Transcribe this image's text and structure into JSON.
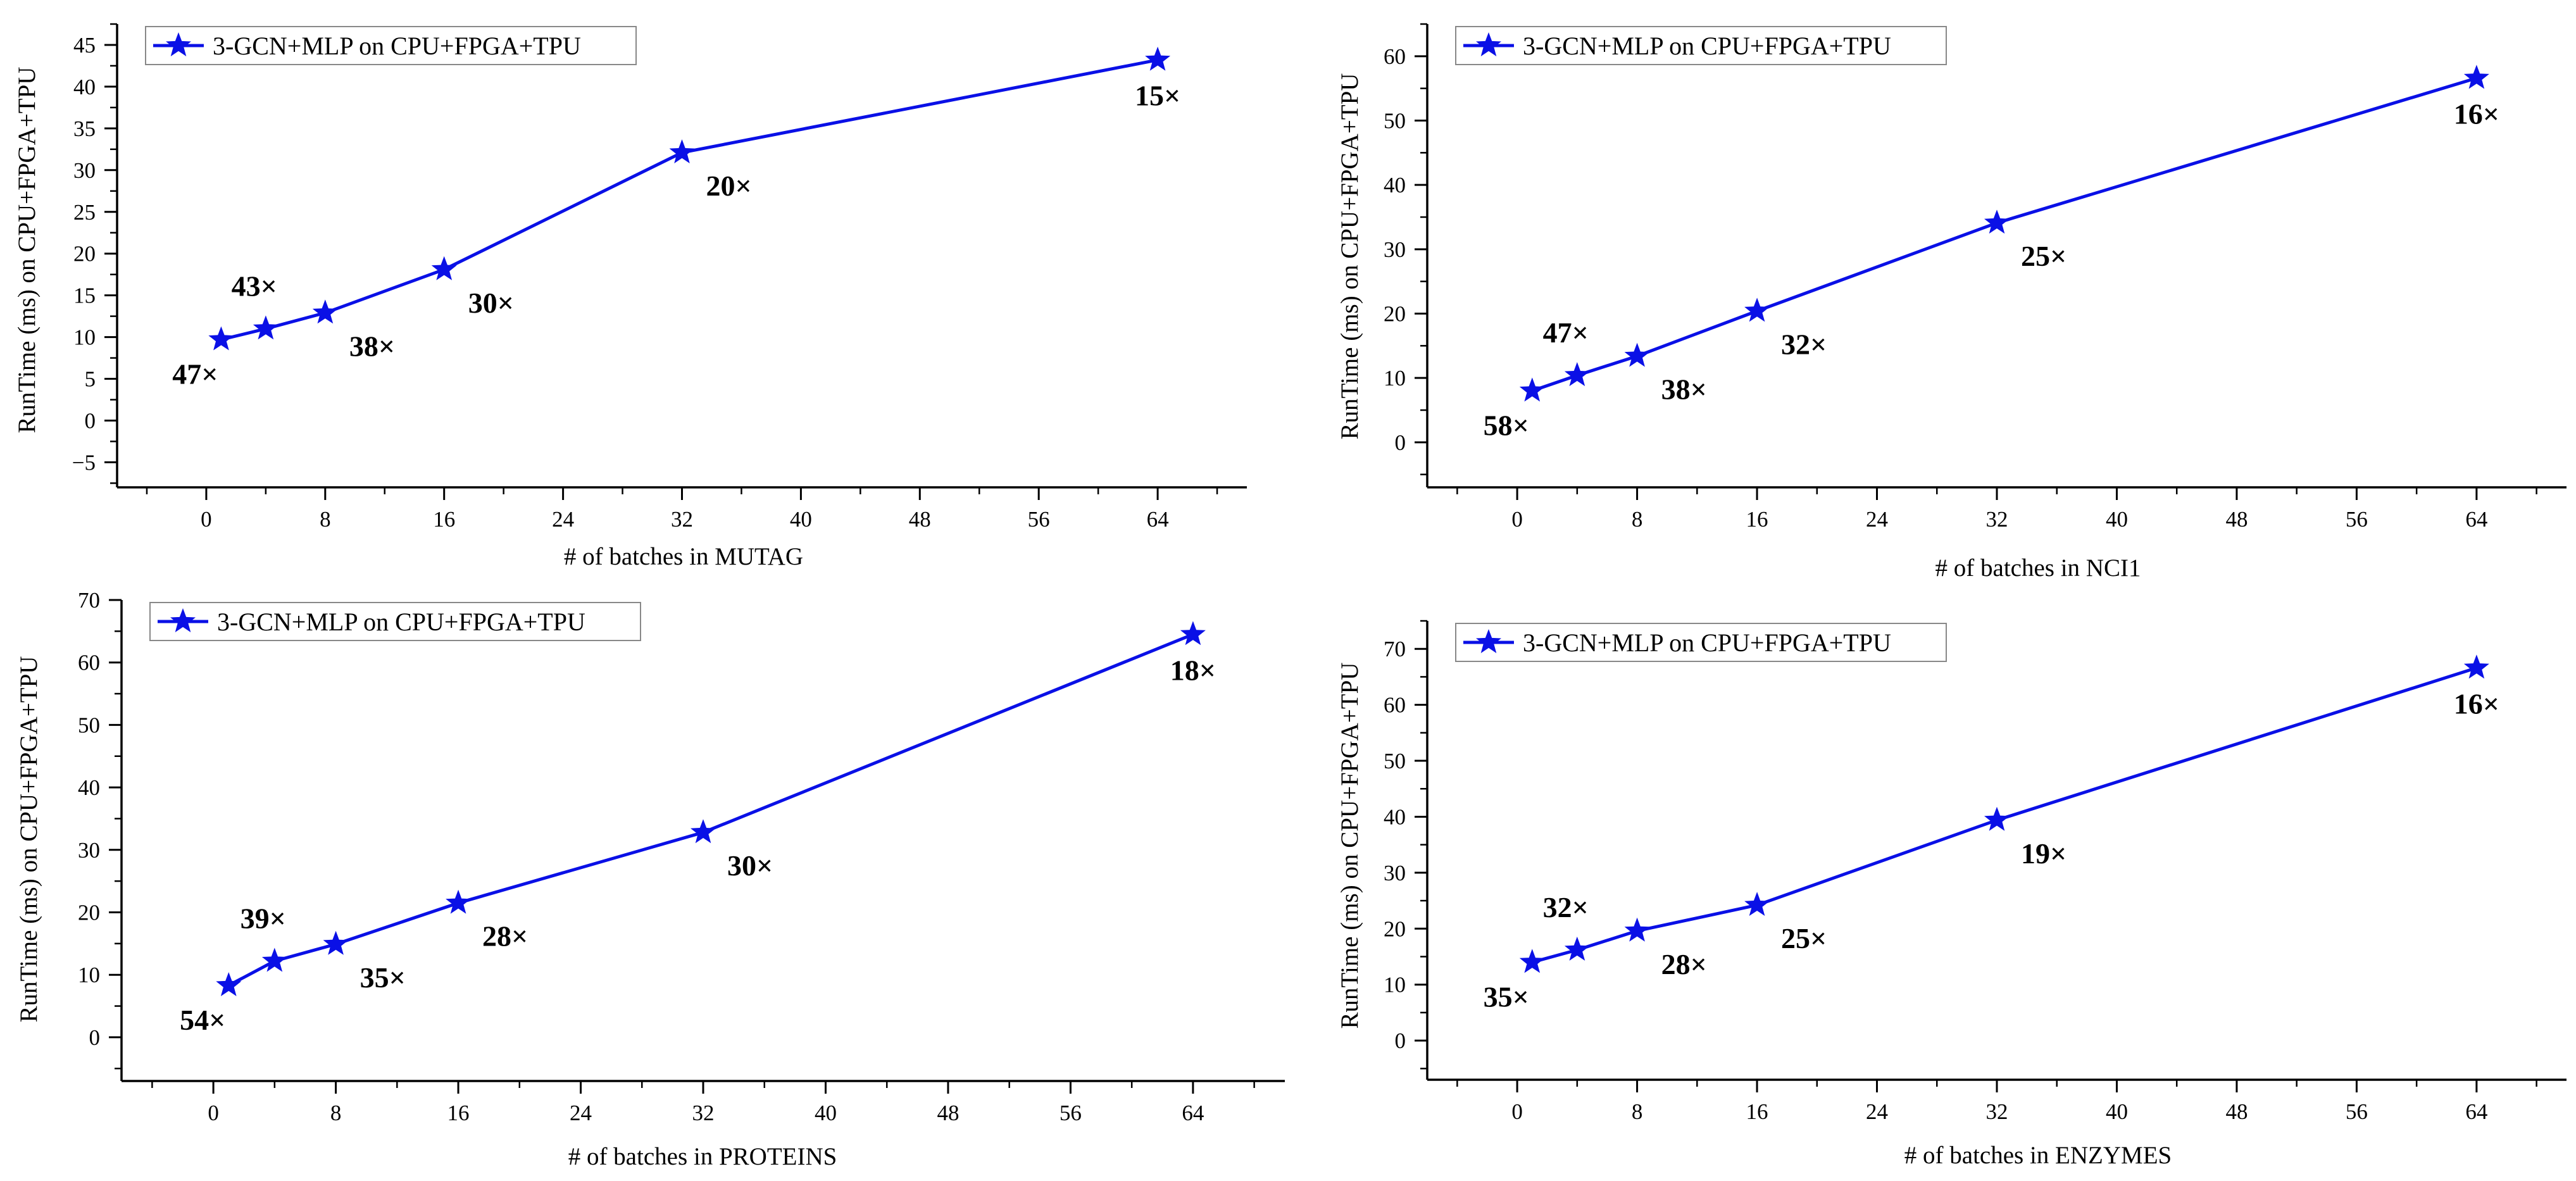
{
  "colors": {
    "series": "#0a10e6",
    "axis": "#000000",
    "legend_border": "#888888"
  },
  "chart_data": [
    {
      "type": "line",
      "title": "",
      "xlabel": "# of batches in MUTAG",
      "ylabel": "RunTime (ms) on CPU+FPGA+TPU",
      "xlim": [
        -6,
        70
      ],
      "ylim": [
        -8,
        47.5
      ],
      "xticks": [
        0,
        8,
        16,
        24,
        32,
        40,
        48,
        56,
        64
      ],
      "yticks": [
        -5,
        0,
        5,
        10,
        15,
        20,
        25,
        30,
        35,
        40,
        45
      ],
      "legend_position": "top-left",
      "series": [
        {
          "name": "3-GCN+MLP on CPU+FPGA+TPU",
          "marker": "star",
          "x": [
            1,
            4,
            8,
            16,
            32,
            64
          ],
          "y": [
            9.7,
            11.0,
            12.9,
            18.1,
            32.1,
            43.2
          ]
        }
      ],
      "annotations": [
        {
          "text": "47×",
          "x": 1,
          "y": 9.7,
          "place": "below-left"
        },
        {
          "text": "43×",
          "x": 4,
          "y": 11.0,
          "place": "above"
        },
        {
          "text": "38×",
          "x": 8,
          "y": 12.9,
          "place": "below-right"
        },
        {
          "text": "30×",
          "x": 16,
          "y": 18.1,
          "place": "below-right"
        },
        {
          "text": "20×",
          "x": 32,
          "y": 32.1,
          "place": "below-right"
        },
        {
          "text": "15×",
          "x": 64,
          "y": 43.2,
          "place": "below"
        }
      ]
    },
    {
      "type": "line",
      "title": "",
      "xlabel": "# of batches in NCI1",
      "ylabel": "RunTime (ms) on CPU+FPGA+TPU",
      "xlim": [
        -6,
        70
      ],
      "ylim": [
        -7,
        65
      ],
      "xticks": [
        0,
        8,
        16,
        24,
        32,
        40,
        48,
        56,
        64
      ],
      "yticks": [
        0,
        10,
        20,
        30,
        40,
        50,
        60
      ],
      "legend_position": "top-left",
      "series": [
        {
          "name": "3-GCN+MLP on CPU+FPGA+TPU",
          "marker": "star",
          "x": [
            1,
            4,
            8,
            16,
            32,
            64
          ],
          "y": [
            8.0,
            10.4,
            13.4,
            20.4,
            34.1,
            56.6
          ]
        }
      ],
      "annotations": [
        {
          "text": "58×",
          "x": 1,
          "y": 8.0,
          "place": "below-left"
        },
        {
          "text": "47×",
          "x": 4,
          "y": 10.4,
          "place": "above"
        },
        {
          "text": "38×",
          "x": 8,
          "y": 13.4,
          "place": "below-right"
        },
        {
          "text": "32×",
          "x": 16,
          "y": 20.4,
          "place": "below-right"
        },
        {
          "text": "25×",
          "x": 32,
          "y": 34.1,
          "place": "below-right"
        },
        {
          "text": "16×",
          "x": 64,
          "y": 56.6,
          "place": "below"
        }
      ]
    },
    {
      "type": "line",
      "title": "",
      "xlabel": "# of batches in PROTEINS",
      "ylabel": "RunTime (ms) on CPU+FPGA+TPU",
      "xlim": [
        -6,
        70
      ],
      "ylim": [
        -7,
        70
      ],
      "xticks": [
        0,
        8,
        16,
        24,
        32,
        40,
        48,
        56,
        64
      ],
      "yticks": [
        0,
        10,
        20,
        30,
        40,
        50,
        60,
        70
      ],
      "legend_position": "top-left",
      "series": [
        {
          "name": "3-GCN+MLP on CPU+FPGA+TPU",
          "marker": "star",
          "x": [
            1,
            4,
            8,
            16,
            32,
            64
          ],
          "y": [
            8.3,
            12.2,
            14.9,
            21.5,
            32.8,
            64.5
          ]
        }
      ],
      "annotations": [
        {
          "text": "54×",
          "x": 1,
          "y": 8.3,
          "place": "below-left"
        },
        {
          "text": "39×",
          "x": 4,
          "y": 12.2,
          "place": "above"
        },
        {
          "text": "35×",
          "x": 8,
          "y": 14.9,
          "place": "below-right"
        },
        {
          "text": "28×",
          "x": 16,
          "y": 21.5,
          "place": "below-right"
        },
        {
          "text": "30×",
          "x": 32,
          "y": 32.8,
          "place": "below-right"
        },
        {
          "text": "18×",
          "x": 64,
          "y": 64.5,
          "place": "below"
        }
      ]
    },
    {
      "type": "line",
      "title": "",
      "xlabel": "# of batches in ENZYMES",
      "ylabel": "RunTime (ms) on CPU+FPGA+TPU",
      "xlim": [
        -6,
        70
      ],
      "ylim": [
        -7,
        75
      ],
      "xticks": [
        0,
        8,
        16,
        24,
        32,
        40,
        48,
        56,
        64
      ],
      "yticks": [
        0,
        10,
        20,
        30,
        40,
        50,
        60,
        70
      ],
      "legend_position": "top-left",
      "series": [
        {
          "name": "3-GCN+MLP on CPU+FPGA+TPU",
          "marker": "star",
          "x": [
            1,
            4,
            8,
            16,
            32,
            64
          ],
          "y": [
            14.0,
            16.2,
            19.6,
            24.2,
            39.4,
            66.6
          ]
        }
      ],
      "annotations": [
        {
          "text": "35×",
          "x": 1,
          "y": 14.0,
          "place": "below-left"
        },
        {
          "text": "32×",
          "x": 4,
          "y": 16.2,
          "place": "above"
        },
        {
          "text": "28×",
          "x": 8,
          "y": 19.6,
          "place": "below-right"
        },
        {
          "text": "25×",
          "x": 16,
          "y": 24.2,
          "place": "below-right"
        },
        {
          "text": "19×",
          "x": 32,
          "y": 39.4,
          "place": "below-right"
        },
        {
          "text": "16×",
          "x": 64,
          "y": 66.6,
          "place": "below"
        }
      ]
    }
  ]
}
